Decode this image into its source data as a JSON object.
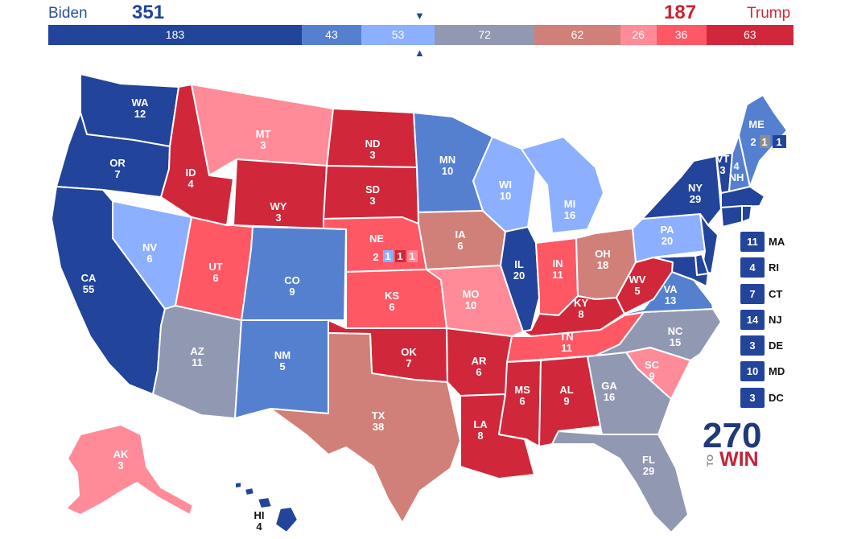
{
  "header": {
    "left_candidate": "Biden",
    "left_total": "351",
    "right_candidate": "Trump",
    "right_total": "187",
    "marker_top": "▼",
    "marker_bottom": "▲"
  },
  "colors": {
    "safe_dem": "#22449a",
    "likely_dem": "#5580d0",
    "lean_dem": "#8cb0ff",
    "tossup": "#9198b2",
    "tilt_rep": "#d08078",
    "lean_rep": "#ff8b98",
    "likely_rep": "#ff5865",
    "safe_rep": "#d0283a",
    "split_gray": "#8d8d8d"
  },
  "ev_bar": [
    {
      "value": 183,
      "label": "183",
      "color": "#22449a"
    },
    {
      "value": 43,
      "label": "43",
      "color": "#5580d0"
    },
    {
      "value": 53,
      "label": "53",
      "color": "#8cb0ff"
    },
    {
      "value": 72,
      "label": "72",
      "color": "#9198b2"
    },
    {
      "value": 62,
      "label": "62",
      "color": "#d08078"
    },
    {
      "value": 26,
      "label": "26",
      "color": "#ff8b98"
    },
    {
      "value": 36,
      "label": "36",
      "color": "#ff5865"
    },
    {
      "value": 63,
      "label": "63",
      "color": "#d0283a"
    }
  ],
  "states": {
    "WA": {
      "abbr": "WA",
      "ev": "12",
      "color": "#22449a"
    },
    "OR": {
      "abbr": "OR",
      "ev": "7",
      "color": "#22449a"
    },
    "CA": {
      "abbr": "CA",
      "ev": "55",
      "color": "#22449a"
    },
    "NV": {
      "abbr": "NV",
      "ev": "6",
      "color": "#8cb0ff"
    },
    "ID": {
      "abbr": "ID",
      "ev": "4",
      "color": "#d0283a"
    },
    "MT": {
      "abbr": "MT",
      "ev": "3",
      "color": "#ff8b98"
    },
    "WY": {
      "abbr": "WY",
      "ev": "3",
      "color": "#d0283a"
    },
    "UT": {
      "abbr": "UT",
      "ev": "6",
      "color": "#ff5865"
    },
    "AZ": {
      "abbr": "AZ",
      "ev": "11",
      "color": "#9198b2"
    },
    "CO": {
      "abbr": "CO",
      "ev": "9",
      "color": "#5580d0"
    },
    "NM": {
      "abbr": "NM",
      "ev": "5",
      "color": "#5580d0"
    },
    "ND": {
      "abbr": "ND",
      "ev": "3",
      "color": "#d0283a"
    },
    "SD": {
      "abbr": "SD",
      "ev": "3",
      "color": "#d0283a"
    },
    "NE": {
      "abbr": "NE",
      "ev": "2",
      "color": "#ff5865"
    },
    "KS": {
      "abbr": "KS",
      "ev": "6",
      "color": "#ff5865"
    },
    "OK": {
      "abbr": "OK",
      "ev": "7",
      "color": "#d0283a"
    },
    "TX": {
      "abbr": "TX",
      "ev": "38",
      "color": "#d08078"
    },
    "MN": {
      "abbr": "MN",
      "ev": "10",
      "color": "#5580d0"
    },
    "IA": {
      "abbr": "IA",
      "ev": "6",
      "color": "#d08078"
    },
    "MO": {
      "abbr": "MO",
      "ev": "10",
      "color": "#ff8b98"
    },
    "AR": {
      "abbr": "AR",
      "ev": "6",
      "color": "#d0283a"
    },
    "LA": {
      "abbr": "LA",
      "ev": "8",
      "color": "#d0283a"
    },
    "WI": {
      "abbr": "WI",
      "ev": "10",
      "color": "#8cb0ff"
    },
    "IL": {
      "abbr": "IL",
      "ev": "20",
      "color": "#22449a"
    },
    "MI": {
      "abbr": "MI",
      "ev": "16",
      "color": "#8cb0ff"
    },
    "IN": {
      "abbr": "IN",
      "ev": "11",
      "color": "#ff5865"
    },
    "OH": {
      "abbr": "OH",
      "ev": "18",
      "color": "#d08078"
    },
    "KY": {
      "abbr": "KY",
      "ev": "8",
      "color": "#d0283a"
    },
    "TN": {
      "abbr": "TN",
      "ev": "11",
      "color": "#ff5865"
    },
    "MS": {
      "abbr": "MS",
      "ev": "6",
      "color": "#d0283a"
    },
    "AL": {
      "abbr": "AL",
      "ev": "9",
      "color": "#d0283a"
    },
    "GA": {
      "abbr": "GA",
      "ev": "16",
      "color": "#9198b2"
    },
    "FL": {
      "abbr": "FL",
      "ev": "29",
      "color": "#9198b2"
    },
    "SC": {
      "abbr": "SC",
      "ev": "9",
      "color": "#ff8b98"
    },
    "NC": {
      "abbr": "NC",
      "ev": "15",
      "color": "#9198b2"
    },
    "VA": {
      "abbr": "VA",
      "ev": "13",
      "color": "#5580d0"
    },
    "WV": {
      "abbr": "WV",
      "ev": "5",
      "color": "#d0283a"
    },
    "PA": {
      "abbr": "PA",
      "ev": "20",
      "color": "#8cb0ff"
    },
    "NY": {
      "abbr": "NY",
      "ev": "29",
      "color": "#22449a"
    },
    "VT": {
      "abbr": "VT",
      "ev": "3",
      "color": "#22449a"
    },
    "NH": {
      "abbr": "NH",
      "ev": "4",
      "color": "#5580d0"
    },
    "ME": {
      "abbr": "ME",
      "ev": "2",
      "color": "#5580d0"
    },
    "MA": {
      "abbr": "MA",
      "ev": "11",
      "color": "#22449a"
    },
    "RI": {
      "abbr": "RI",
      "ev": "4",
      "color": "#22449a"
    },
    "CT": {
      "abbr": "CT",
      "ev": "7",
      "color": "#22449a"
    },
    "NJ": {
      "abbr": "NJ",
      "ev": "14",
      "color": "#22449a"
    },
    "DE": {
      "abbr": "DE",
      "ev": "3",
      "color": "#22449a"
    },
    "MD": {
      "abbr": "MD",
      "ev": "10",
      "color": "#22449a"
    },
    "DC": {
      "abbr": "DC",
      "ev": "3",
      "color": "#22449a"
    },
    "AK": {
      "abbr": "AK",
      "ev": "3",
      "color": "#ff8b98"
    },
    "HI": {
      "abbr": "HI",
      "ev": "4",
      "color": "#22449a"
    }
  },
  "district_boxes": {
    "ne": [
      {
        "label": "1",
        "color": "#8cb0ff"
      },
      {
        "label": "1",
        "color": "#d0283a"
      },
      {
        "label": "1",
        "color": "#ff8b98"
      }
    ],
    "me": [
      {
        "label": "1",
        "color": "#8d8d8d"
      },
      {
        "label": "1",
        "color": "#22449a"
      }
    ]
  },
  "small_states": [
    {
      "abbr": "MA",
      "ev": "11"
    },
    {
      "abbr": "RI",
      "ev": "4"
    },
    {
      "abbr": "CT",
      "ev": "7"
    },
    {
      "abbr": "NJ",
      "ev": "14"
    },
    {
      "abbr": "DE",
      "ev": "3"
    },
    {
      "abbr": "MD",
      "ev": "10"
    },
    {
      "abbr": "DC",
      "ev": "3"
    }
  ],
  "logo": {
    "number": "270",
    "to": "TO",
    "win": "WIN"
  }
}
